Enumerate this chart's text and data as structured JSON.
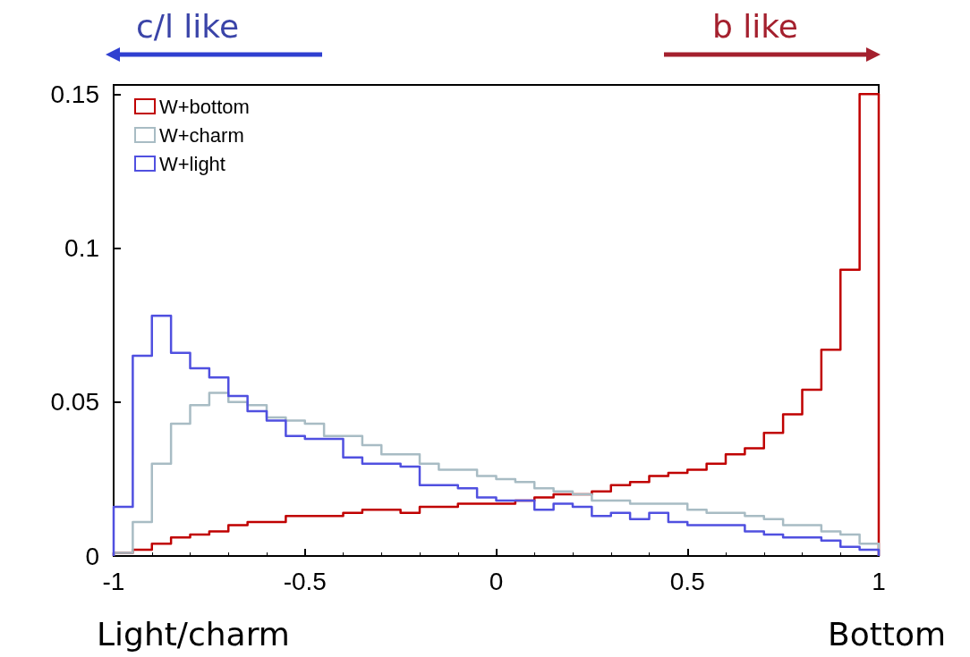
{
  "chart_data": {
    "type": "histogram",
    "bins": [
      -1,
      -0.95,
      -0.9,
      -0.85,
      -0.8,
      -0.75,
      -0.7,
      -0.65,
      -0.6,
      -0.55,
      -0.5,
      -0.45,
      -0.4,
      -0.35,
      -0.3,
      -0.25,
      -0.2,
      -0.15,
      -0.1,
      -0.05,
      0,
      0.05,
      0.1,
      0.15,
      0.2,
      0.25,
      0.3,
      0.35,
      0.4,
      0.45,
      0.5,
      0.55,
      0.6,
      0.65,
      0.7,
      0.75,
      0.8,
      0.85,
      0.9,
      0.95,
      1
    ],
    "series": [
      {
        "name": "W+bottom",
        "color": "#c00000",
        "values": [
          0.001,
          0.002,
          0.004,
          0.006,
          0.007,
          0.008,
          0.01,
          0.011,
          0.011,
          0.013,
          0.013,
          0.013,
          0.014,
          0.015,
          0.015,
          0.014,
          0.016,
          0.016,
          0.017,
          0.017,
          0.017,
          0.018,
          0.019,
          0.02,
          0.02,
          0.021,
          0.023,
          0.024,
          0.026,
          0.027,
          0.028,
          0.03,
          0.033,
          0.035,
          0.04,
          0.046,
          0.054,
          0.067,
          0.093,
          0.15
        ]
      },
      {
        "name": "W+charm",
        "color": "#a8bcc4",
        "values": [
          0.001,
          0.011,
          0.03,
          0.043,
          0.049,
          0.053,
          0.05,
          0.049,
          0.045,
          0.044,
          0.043,
          0.039,
          0.039,
          0.036,
          0.033,
          0.033,
          0.03,
          0.028,
          0.028,
          0.026,
          0.025,
          0.024,
          0.022,
          0.021,
          0.02,
          0.018,
          0.018,
          0.017,
          0.017,
          0.017,
          0.015,
          0.014,
          0.014,
          0.013,
          0.012,
          0.01,
          0.01,
          0.008,
          0.007,
          0.004
        ]
      },
      {
        "name": "W+light",
        "color": "#5050e0",
        "values": [
          0.016,
          0.065,
          0.078,
          0.066,
          0.061,
          0.058,
          0.052,
          0.047,
          0.044,
          0.039,
          0.038,
          0.038,
          0.032,
          0.03,
          0.03,
          0.029,
          0.023,
          0.023,
          0.022,
          0.019,
          0.018,
          0.018,
          0.015,
          0.017,
          0.016,
          0.013,
          0.014,
          0.012,
          0.014,
          0.011,
          0.01,
          0.01,
          0.01,
          0.008,
          0.007,
          0.006,
          0.006,
          0.005,
          0.003,
          0.002
        ]
      }
    ],
    "xlim": [
      -1,
      1
    ],
    "xticks": [
      -1,
      -0.5,
      0,
      0.5,
      1
    ],
    "ylim": [
      0,
      0.153
    ],
    "yticks": [
      0,
      0.05,
      0.1,
      0.15
    ],
    "legend": "top left",
    "grid": false,
    "marker": "none",
    "annotations": [
      "c/l like",
      "b like",
      "Light/charm",
      "Bottom"
    ]
  }
}
